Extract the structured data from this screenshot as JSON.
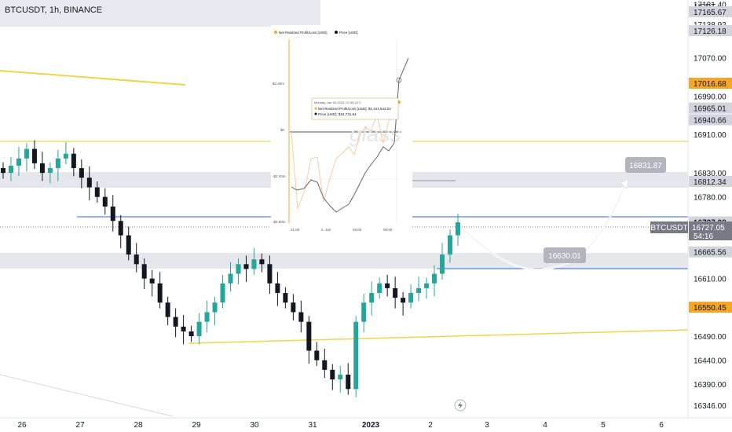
{
  "header": {
    "title": "BTCUSDT, 1h, BINANCE"
  },
  "price_axis": {
    "currency": "USDT",
    "ticks": [
      "17181.40",
      "17165.67",
      "17138.92",
      "17126.18",
      "17070.00",
      "17016.68",
      "16990.00",
      "16965.01",
      "16940.66",
      "16910.00",
      "16830.00",
      "16812.34",
      "16780.00",
      "16727.92",
      "16727.05",
      "16715.25",
      "16665.56",
      "16610.00",
      "16550.45",
      "16490.00",
      "16440.00",
      "16390.00",
      "16346.00"
    ],
    "highlight_ticks": {
      "17165.67": "#d1d4dc",
      "17126.18": "#d1d4dc",
      "17016.68": "#f5a623",
      "16965.01": "#d1d4dc",
      "16940.66": "#d1d4dc",
      "16812.34": "#d1d4dc",
      "16727.92": "#d1d4dc",
      "16715.25": "#d1d4dc",
      "16665.56": "#d1d4dc",
      "16550.45": "#f5a623"
    }
  },
  "symbol_badge": {
    "label": "BTCUSDT",
    "price": "16727.05",
    "countdown": "54:16"
  },
  "annotations": {
    "target_up": "16831.87",
    "target_down": "16630.01"
  },
  "time_axis": {
    "labels": [
      "26",
      "27",
      "28",
      "29",
      "30",
      "31",
      "2023",
      "2",
      "3",
      "4",
      "5",
      "6"
    ]
  },
  "inset": {
    "legend": [
      "Net Realized Profit/Loss [USD]",
      "Price [USD]"
    ],
    "y_labels": [
      "$2.40m",
      "$0",
      "-$2.40m",
      "-$4.80m"
    ],
    "x_labels": [
      "21:00",
      "2. Jan",
      "03:00",
      "06:00"
    ],
    "tooltip": {
      "date": "Monday, Jan 02 2023, 07:00 UTC",
      "npl": "Net Realized Profit/Loss [USD]: $1,441,543.02",
      "price": "Price [USD]: $16,731.64"
    },
    "watermark": "glass"
  },
  "colors": {
    "up": "#26a69a",
    "down": "#131722",
    "yellow": "#f0d54a",
    "blue": "#2962ff",
    "orange": "#f5a623"
  },
  "chart_data": {
    "type": "candlestick",
    "title": "BTCUSDT, 1h, BINANCE",
    "ylim": [
      16320,
      17190
    ],
    "x_labels": [
      "26",
      "27",
      "28",
      "29",
      "30",
      "31",
      "2023",
      "2",
      "3",
      "4",
      "5",
      "6"
    ],
    "support_resistance": [
      16812.34,
      16727.92,
      16715.25,
      16665.56
    ],
    "projection": [
      16727.05,
      16630.01,
      16831.87
    ],
    "close_approx": [
      16830,
      16845,
      16860,
      16880,
      16850,
      16830,
      16840,
      16860,
      16870,
      16840,
      16820,
      16800,
      16780,
      16760,
      16730,
      16700,
      16660,
      16640,
      16610,
      16600,
      16560,
      16530,
      16510,
      16500,
      16490,
      16520,
      16540,
      16560,
      16600,
      16620,
      16640,
      16630,
      16650,
      16640,
      16600,
      16580,
      16560,
      16540,
      16520,
      16460,
      16440,
      16420,
      16400,
      16410,
      16380,
      16520,
      16560,
      16580,
      16600,
      16590,
      16570,
      16560,
      16580,
      16590,
      16600,
      16620,
      16660,
      16700,
      16727
    ]
  }
}
